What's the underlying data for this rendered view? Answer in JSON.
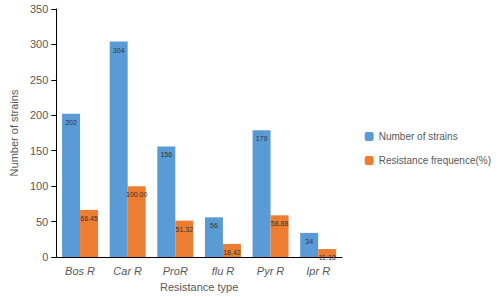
{
  "chart_data": {
    "type": "bar",
    "x_label": "Resistance type",
    "y_label": "Number of strains",
    "categories": [
      "Bos R",
      "Car R",
      "ProR",
      "flu R",
      "Pyr R",
      "Ipr R"
    ],
    "series": [
      {
        "name": "Number of strains",
        "color": "#5b9bd5",
        "values": [
          202,
          304,
          156,
          56,
          179,
          34
        ]
      },
      {
        "name": "Resistance frequence(%)",
        "color": "#ed7d31",
        "values": [
          66.45,
          100,
          51.32,
          18.42,
          58.88,
          11.18
        ],
        "value_labels": [
          "66.45",
          "100.00",
          "51.32",
          "18.42",
          "58.88",
          "11.18"
        ]
      }
    ],
    "ylim": [
      0,
      350
    ],
    "yticks": [
      0,
      50,
      100,
      150,
      200,
      250,
      300,
      350
    ],
    "grid": false,
    "legend": "right",
    "data_labels": true
  }
}
